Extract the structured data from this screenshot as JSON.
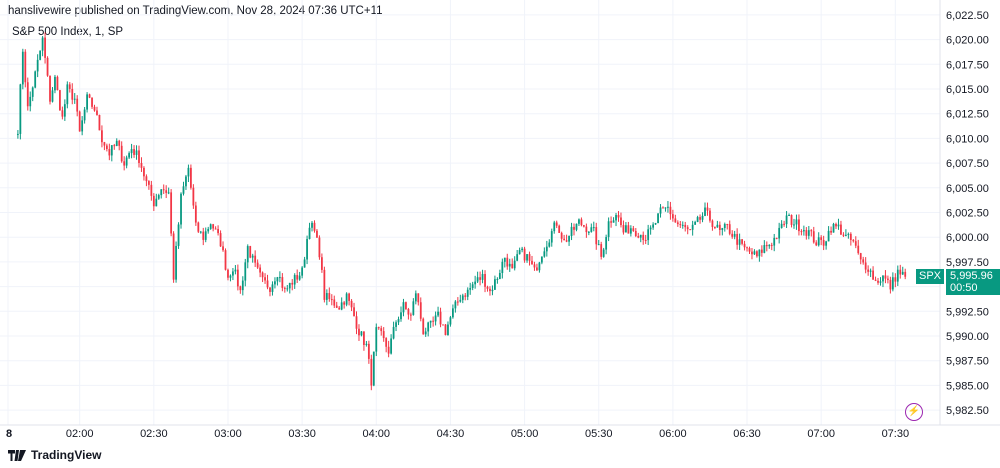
{
  "header": {
    "published": "hanslivewire published on TradingView.com, Nov 28, 2024 07:36 UTC+11",
    "symbol": "S&P 500 Index, 1, SP"
  },
  "footer": {
    "brand": "TradingView"
  },
  "price_tag": {
    "symbol": "SPX",
    "price": "5,995.96",
    "countdown": "00:50"
  },
  "colors": {
    "up": "#089981",
    "down": "#f23645",
    "grid": "#f0f3fa",
    "axis": "#e0e3eb",
    "bolt": "#9c27b0"
  },
  "icons": {
    "logo": "tradingview-logo-icon",
    "bolt": "lightning-bolt-icon"
  },
  "chart_data": {
    "type": "candlestick",
    "title": "S&P 500 Index, 1, SP",
    "y_axis": {
      "range": [
        5981.5,
        6023.5
      ],
      "ticks": [
        "6,022.50",
        "6,020.00",
        "6,017.50",
        "6,015.00",
        "6,012.50",
        "6,010.00",
        "6,007.50",
        "6,005.00",
        "6,002.50",
        "6,000.00",
        "5,997.50",
        "5,995.00",
        "5,992.50",
        "5,990.00",
        "5,987.50",
        "5,985.00",
        "5,982.50"
      ],
      "tick_values": [
        6022.5,
        6020,
        6017.5,
        6015,
        6012.5,
        6010,
        6007.5,
        6005,
        6002.5,
        6000,
        5997.5,
        5995,
        5992.5,
        5990,
        5987.5,
        5985,
        5982.5
      ]
    },
    "x_axis": {
      "ticks": [
        "8",
        "02:00",
        "02:30",
        "03:00",
        "03:30",
        "04:00",
        "04:30",
        "05:00",
        "05:30",
        "06:00",
        "06:30",
        "07:00",
        "07:30"
      ]
    },
    "grid": true,
    "series": [
      {
        "interval": "1 minute",
        "close_path": [
          [
            "01:35",
            6011.0
          ],
          [
            "01:37",
            6019.0
          ],
          [
            "01:39",
            6013.0
          ],
          [
            "01:42",
            6016.5
          ],
          [
            "01:45",
            6020.0
          ],
          [
            "01:48",
            6014.0
          ],
          [
            "01:50",
            6016.0
          ],
          [
            "01:53",
            6012.0
          ],
          [
            "01:55",
            6015.0
          ],
          [
            "01:58",
            6014.0
          ],
          [
            "02:00",
            6010.5
          ],
          [
            "02:03",
            6014.0
          ],
          [
            "02:06",
            6013.0
          ],
          [
            "02:09",
            6010.0
          ],
          [
            "02:12",
            6008.5
          ],
          [
            "02:15",
            6009.5
          ],
          [
            "02:18",
            6007.5
          ],
          [
            "02:21",
            6009.0
          ],
          [
            "02:24",
            6008.0
          ],
          [
            "02:27",
            6005.5
          ],
          [
            "02:30",
            6003.5
          ],
          [
            "02:33",
            6005.0
          ],
          [
            "02:36",
            6004.5
          ],
          [
            "02:38",
            5996.0
          ],
          [
            "02:41",
            6004.0
          ],
          [
            "02:44",
            6007.0
          ],
          [
            "02:47",
            6001.0
          ],
          [
            "02:50",
            6000.0
          ],
          [
            "02:53",
            6001.5
          ],
          [
            "02:57",
            5999.5
          ],
          [
            "03:00",
            5996.0
          ],
          [
            "03:02",
            5997.0
          ],
          [
            "03:05",
            5994.5
          ],
          [
            "03:08",
            5999.0
          ],
          [
            "03:11",
            5997.0
          ],
          [
            "03:14",
            5995.5
          ],
          [
            "03:17",
            5995.0
          ],
          [
            "03:20",
            5996.5
          ],
          [
            "03:23",
            5994.5
          ],
          [
            "03:26",
            5995.5
          ],
          [
            "03:30",
            5996.5
          ],
          [
            "03:33",
            6001.5
          ],
          [
            "03:35",
            6000.5
          ],
          [
            "03:37",
            5998.5
          ],
          [
            "03:39",
            5994.0
          ],
          [
            "03:42",
            5993.5
          ],
          [
            "03:45",
            5993.0
          ],
          [
            "03:48",
            5994.0
          ],
          [
            "03:51",
            5992.0
          ],
          [
            "03:53",
            5990.5
          ],
          [
            "03:56",
            5989.0
          ],
          [
            "03:58",
            5985.5
          ],
          [
            "04:00",
            5990.5
          ],
          [
            "04:02",
            5990.0
          ],
          [
            "04:05",
            5988.5
          ],
          [
            "04:08",
            5991.5
          ],
          [
            "04:11",
            5993.0
          ],
          [
            "04:14",
            5992.0
          ],
          [
            "04:16",
            5994.5
          ],
          [
            "04:19",
            5990.5
          ],
          [
            "04:22",
            5991.0
          ],
          [
            "04:25",
            5992.0
          ],
          [
            "04:28",
            5990.5
          ],
          [
            "04:31",
            5992.5
          ],
          [
            "04:34",
            5994.0
          ],
          [
            "04:37",
            5994.5
          ],
          [
            "04:40",
            5995.5
          ],
          [
            "04:43",
            5996.0
          ],
          [
            "04:46",
            5994.5
          ],
          [
            "04:49",
            5996.0
          ],
          [
            "04:52",
            5998.0
          ],
          [
            "04:55",
            5996.5
          ],
          [
            "04:58",
            5998.5
          ],
          [
            "05:01",
            5998.0
          ],
          [
            "05:04",
            5996.5
          ],
          [
            "05:07",
            5998.5
          ],
          [
            "05:10",
            6000.0
          ],
          [
            "05:13",
            6001.5
          ],
          [
            "05:16",
            5999.5
          ],
          [
            "05:19",
            6000.5
          ],
          [
            "05:22",
            6001.5
          ],
          [
            "05:25",
            6001.0
          ],
          [
            "05:28",
            6000.5
          ],
          [
            "05:31",
            5998.0
          ],
          [
            "05:34",
            6001.5
          ],
          [
            "05:37",
            6002.5
          ],
          [
            "05:40",
            6000.5
          ],
          [
            "05:43",
            6001.0
          ],
          [
            "05:46",
            6000.5
          ],
          [
            "05:49",
            6000.0
          ],
          [
            "05:52",
            6001.0
          ],
          [
            "05:55",
            6002.5
          ],
          [
            "05:58",
            6003.0
          ],
          [
            "06:01",
            6001.5
          ],
          [
            "06:04",
            6001.0
          ],
          [
            "06:07",
            6000.5
          ],
          [
            "06:10",
            6001.5
          ],
          [
            "06:13",
            6002.5
          ],
          [
            "06:16",
            6001.5
          ],
          [
            "06:19",
            6000.5
          ],
          [
            "06:22",
            6001.0
          ],
          [
            "06:25",
            6000.0
          ],
          [
            "06:28",
            5999.0
          ],
          [
            "06:31",
            5998.5
          ],
          [
            "06:34",
            5998.0
          ],
          [
            "06:37",
            5999.0
          ],
          [
            "06:40",
            5999.5
          ],
          [
            "06:43",
            6000.5
          ],
          [
            "06:46",
            6002.0
          ],
          [
            "06:49",
            6001.5
          ],
          [
            "06:52",
            6001.0
          ],
          [
            "06:55",
            6000.5
          ],
          [
            "06:58",
            5999.5
          ],
          [
            "07:01",
            5999.5
          ],
          [
            "07:04",
            6001.0
          ],
          [
            "07:07",
            6001.0
          ],
          [
            "07:10",
            6000.0
          ],
          [
            "07:13",
            5999.5
          ],
          [
            "07:16",
            5997.5
          ],
          [
            "07:19",
            5997.0
          ],
          [
            "07:22",
            5995.5
          ],
          [
            "07:25",
            5996.0
          ],
          [
            "07:28",
            5995.0
          ],
          [
            "07:31",
            5996.5
          ],
          [
            "07:34",
            5996.0
          ]
        ]
      }
    ],
    "last_price": 5995.96
  }
}
